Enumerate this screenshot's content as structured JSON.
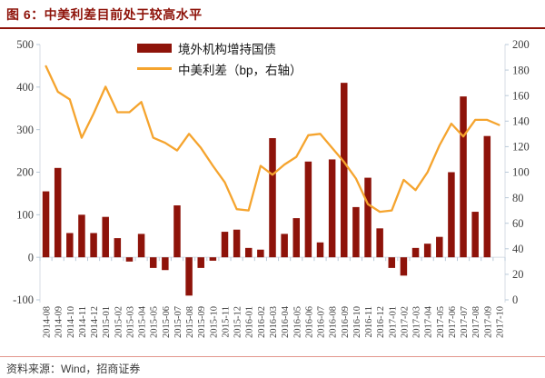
{
  "header": {
    "title": "图 6：中美利差目前处于较高水平"
  },
  "legend": [
    {
      "label": "境外机构增持国债"
    },
    {
      "label": "中美利差（bp，右轴）"
    }
  ],
  "footer": {
    "source": "资料来源：Wind，招商证券"
  },
  "colors": {
    "bar": "#8E130A",
    "line": "#F5A42E",
    "title": "#8E130A",
    "axis_text": "#3d3d3d",
    "tick": "#b9c9d8",
    "axis_line": "#d7dee5",
    "footer_rule": "#E2968D"
  },
  "chart_data": {
    "type": "bar",
    "title": "图 6：中美利差目前处于较高水平",
    "grid": false,
    "legend_position": "top",
    "categories": [
      "2014-08",
      "2014-09",
      "2014-10",
      "2014-11",
      "2014-12",
      "2015-01",
      "2015-02",
      "2015-03",
      "2015-04",
      "2015-05",
      "2015-06",
      "2015-07",
      "2015-08",
      "2015-09",
      "2015-10",
      "2015-11",
      "2015-12",
      "2016-01",
      "2016-02",
      "2016-03",
      "2016-04",
      "2016-05",
      "2016-06",
      "2016-07",
      "2016-08",
      "2016-09",
      "2016-10",
      "2016-11",
      "2016-12",
      "2017-01",
      "2017-02",
      "2017-03",
      "2017-04",
      "2017-05",
      "2017-06",
      "2017-07",
      "2017-08",
      "2017-09",
      "2017-10"
    ],
    "series": [
      {
        "name": "境外机构增持国债",
        "type": "bar",
        "axis": "left",
        "values": [
          155,
          210,
          57,
          100,
          57,
          95,
          45,
          -10,
          55,
          -25,
          -30,
          122,
          -90,
          -25,
          -8,
          60,
          65,
          22,
          18,
          280,
          55,
          92,
          225,
          35,
          230,
          410,
          118,
          187,
          68,
          -25,
          -43,
          22,
          32,
          48,
          200,
          378,
          107,
          285,
          0
        ]
      },
      {
        "name": "中美利差（bp，右轴）",
        "type": "line",
        "axis": "right",
        "values": [
          183,
          163,
          157,
          127,
          146,
          167,
          147,
          147,
          155,
          127,
          123,
          117,
          130,
          119,
          105,
          92,
          71,
          70,
          105,
          98,
          106,
          112,
          129,
          130,
          119,
          108,
          95,
          75,
          69,
          70,
          94,
          86,
          100,
          121,
          138,
          128,
          141,
          141,
          137
        ]
      }
    ],
    "left_axis": {
      "min": -100,
      "max": 500,
      "tick_step": 100,
      "ticks": [
        "500",
        "400",
        "300",
        "200",
        "100",
        "0",
        "-100"
      ]
    },
    "right_axis": {
      "min": 0,
      "max": 200,
      "tick_step": 20,
      "ticks": [
        "200",
        "180",
        "160",
        "140",
        "120",
        "100",
        "80",
        "60",
        "40",
        "20",
        "0"
      ]
    }
  }
}
